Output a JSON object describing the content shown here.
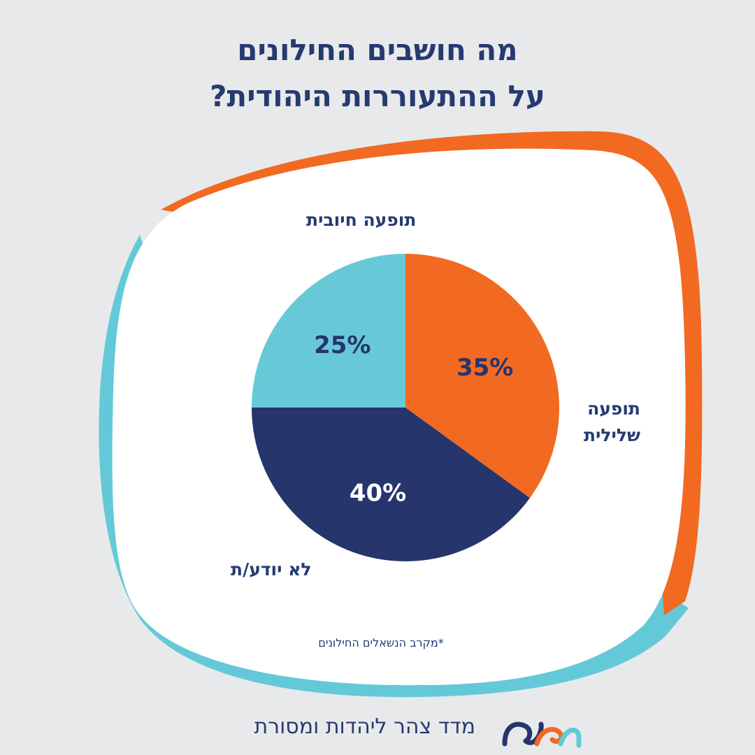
{
  "title": {
    "line1": "מה חושבים החילונים",
    "line2": "על ההתעוררות היהודית?"
  },
  "chart_data": {
    "type": "pie",
    "slices": [
      {
        "label": "תופעה חיובית",
        "value": 25,
        "value_label": "25%",
        "color": "#67c9d8"
      },
      {
        "label": "תופעה שלילית",
        "value": 35,
        "value_label": "35%",
        "color": "#f26922"
      },
      {
        "label": "לא יודע/ת",
        "value": 40,
        "value_label": "40%",
        "color": "#26356b"
      }
    ]
  },
  "labels": {
    "positive": "תופעה חיובית",
    "negative_line1": "תופעה",
    "negative_line2": "שלילית",
    "unknown": "לא יודע/ת"
  },
  "footnote": "*מקרב הנשאלים החילונים",
  "brand": {
    "name": "מדד צהר ליהדות ומסורת",
    "logo_icon": "mashav-logo-icon"
  },
  "colors": {
    "navy": "#263a72",
    "orange": "#f26922",
    "teal": "#67c9d8",
    "background": "#e8e9ea"
  }
}
